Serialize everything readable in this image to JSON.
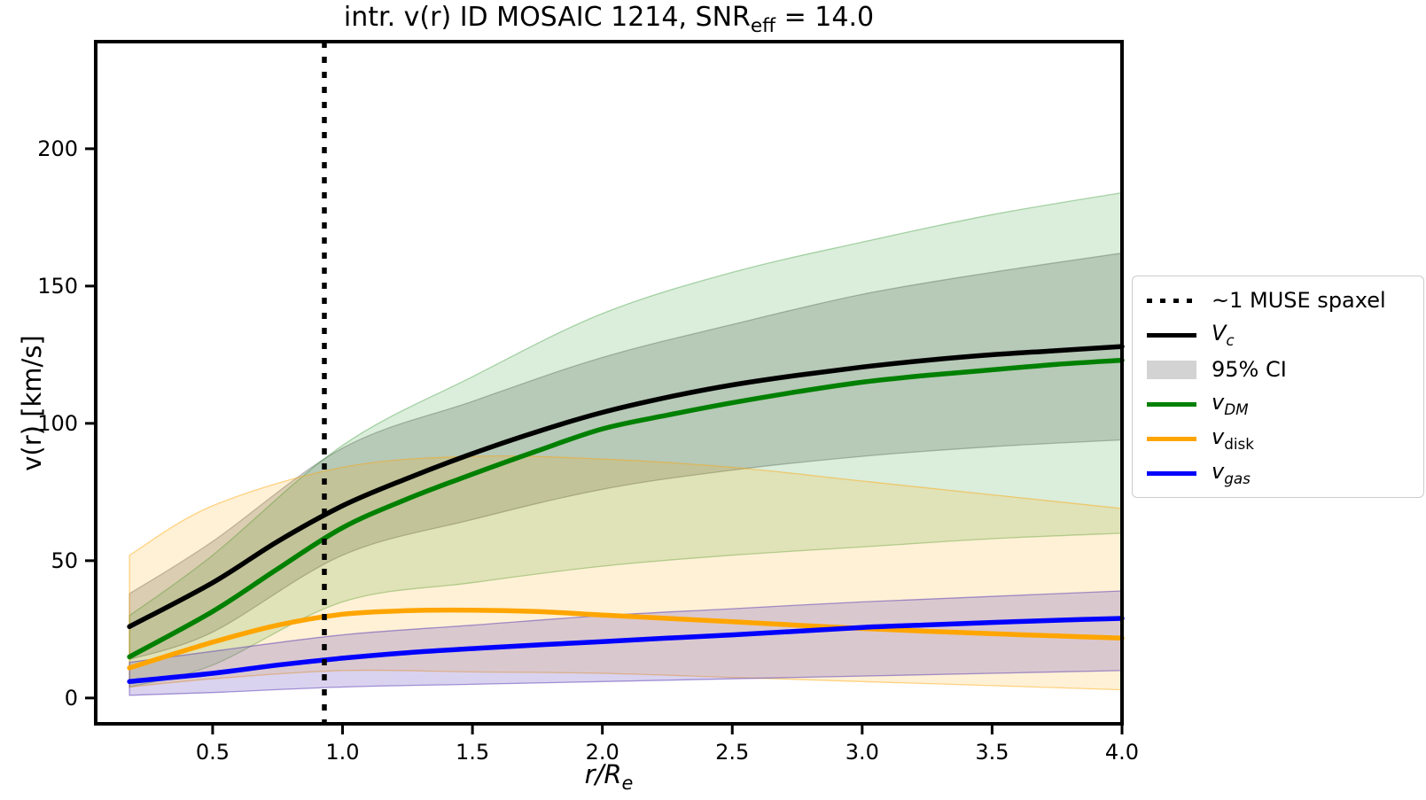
{
  "title": {
    "pre": "intr. v(r) ID MOSAIC 1214, SNR",
    "sub": "eff",
    "post": " = 14.0"
  },
  "axes": {
    "ylabel": "v(r) [km/s]",
    "xlabel": {
      "main": "r/R",
      "sub": "e"
    },
    "xlim": [
      0.05,
      4.0
    ],
    "ylim": [
      -9.4,
      239
    ],
    "x_ticks": [
      0.5,
      1.0,
      1.5,
      2.0,
      2.5,
      3.0,
      3.5,
      4.0
    ],
    "x_tick_labels": [
      "0.5",
      "1.0",
      "1.5",
      "2.0",
      "2.5",
      "3.0",
      "3.5",
      "4.0"
    ],
    "y_ticks": [
      0,
      50,
      100,
      150,
      200
    ],
    "y_tick_labels": [
      "0",
      "50",
      "100",
      "150",
      "200"
    ]
  },
  "legend": {
    "items": [
      {
        "label": "~1 MUSE spaxel",
        "swatch": "dotted-black-line"
      },
      {
        "main": "V",
        "sub": "c",
        "swatch": "solid-black-line"
      },
      {
        "label": "95% CI",
        "swatch": "gray-patch"
      },
      {
        "main": "v",
        "sub": "DM",
        "swatch": "solid-green-line"
      },
      {
        "main": "v",
        "sub": "disk",
        "swatch": "solid-orange-line"
      },
      {
        "main": "v",
        "sub": "gas",
        "swatch": "solid-blue-line"
      }
    ]
  },
  "colors": {
    "vc": "#000000",
    "vdm": "#008000",
    "vdisk": "#FFA500",
    "vgas": "#0000FF",
    "ci_gray_fill": "rgba(128,128,128,0.33)",
    "background": "#ffffff"
  },
  "chart_data": {
    "type": "line",
    "title": "intr. v(r) ID MOSAIC 1214, SNR_eff = 14.0",
    "xlabel": "r/R_e",
    "ylabel": "v(r) [km/s]",
    "xlim": [
      0.05,
      4.0
    ],
    "ylim": [
      -9.4,
      239
    ],
    "grid": false,
    "legend_position": "outside-right",
    "vline": {
      "x": 0.93,
      "style": "dotted",
      "color": "#000000",
      "label": "~1 MUSE spaxel"
    },
    "x": [
      0.18,
      0.5,
      0.75,
      1.0,
      1.25,
      1.5,
      1.75,
      2.0,
      2.25,
      2.5,
      2.75,
      3.0,
      3.25,
      3.5,
      3.75,
      4.0
    ],
    "series": [
      {
        "name": "V_c",
        "color": "#000000",
        "linewidth": 5.5,
        "values": [
          26,
          42,
          57,
          70,
          80,
          89,
          97,
          104,
          109.5,
          114,
          117.5,
          120.5,
          123,
          125,
          126.5,
          128
        ]
      },
      {
        "name": "v_DM",
        "color": "#008000",
        "linewidth": 5.5,
        "values": [
          15,
          31.5,
          47,
          62,
          72.5,
          81.5,
          90,
          98,
          103,
          107.5,
          111.5,
          115,
          117.5,
          119.5,
          121.5,
          123
        ]
      },
      {
        "name": "v_disk",
        "color": "#FFA500",
        "linewidth": 5.5,
        "values": [
          11,
          20.3,
          26.5,
          30.5,
          31.8,
          32,
          31.5,
          30.2,
          29,
          27.8,
          26.5,
          25.3,
          24.3,
          23.4,
          22.6,
          21.8
        ]
      },
      {
        "name": "v_gas",
        "color": "#0000FF",
        "linewidth": 5.5,
        "values": [
          6,
          9,
          12,
          14.5,
          16.5,
          18,
          19.3,
          20.5,
          21.8,
          23,
          24.3,
          25.7,
          26.6,
          27.5,
          28.3,
          29
        ]
      }
    ],
    "bands": [
      {
        "name": "V_c 95% CI",
        "fill": "rgba(128,128,128,0.33)",
        "edge": "rgba(128,128,128,0.5)",
        "x": [
          0.18,
          0.5,
          1.0,
          1.5,
          2.0,
          2.5,
          3.0,
          3.5,
          4.0
        ],
        "lower": [
          14,
          24,
          52,
          65,
          76,
          83,
          88,
          91.5,
          94
        ],
        "upper": [
          38,
          57,
          91,
          108,
          124,
          136,
          147,
          155,
          162
        ]
      },
      {
        "name": "v_DM 95% CI",
        "fill": "rgba(0,128,0,0.14)",
        "edge": "rgba(0,128,0,0.3)",
        "x": [
          0.18,
          0.5,
          1.0,
          1.5,
          2.0,
          2.5,
          3.0,
          3.5,
          4.0
        ],
        "lower": [
          4,
          12,
          35,
          42,
          48,
          52,
          55,
          58,
          60
        ],
        "upper": [
          30,
          52,
          92,
          117,
          140,
          155,
          166,
          176,
          184
        ]
      },
      {
        "name": "v_disk 95% CI",
        "fill": "rgba(255,165,0,0.16)",
        "edge": "rgba(255,165,0,0.45)",
        "x": [
          0.18,
          0.5,
          1.0,
          1.5,
          2.0,
          2.5,
          3.0,
          3.5,
          4.0
        ],
        "lower": [
          4,
          7,
          10,
          9.5,
          9,
          7.5,
          6,
          4.5,
          3
        ],
        "upper": [
          52,
          70,
          84,
          88,
          87,
          84,
          79,
          74,
          69
        ]
      },
      {
        "name": "v_gas 95% CI",
        "fill": "rgba(85,55,180,0.22)",
        "edge": "rgba(85,55,180,0.5)",
        "x": [
          0.18,
          0.5,
          1.0,
          1.5,
          2.0,
          2.5,
          3.0,
          3.5,
          4.0
        ],
        "lower": [
          1,
          2,
          4,
          5,
          6,
          7,
          8,
          9,
          10
        ],
        "upper": [
          13,
          17,
          23,
          26.5,
          30,
          32.5,
          35,
          37,
          39
        ]
      }
    ]
  }
}
